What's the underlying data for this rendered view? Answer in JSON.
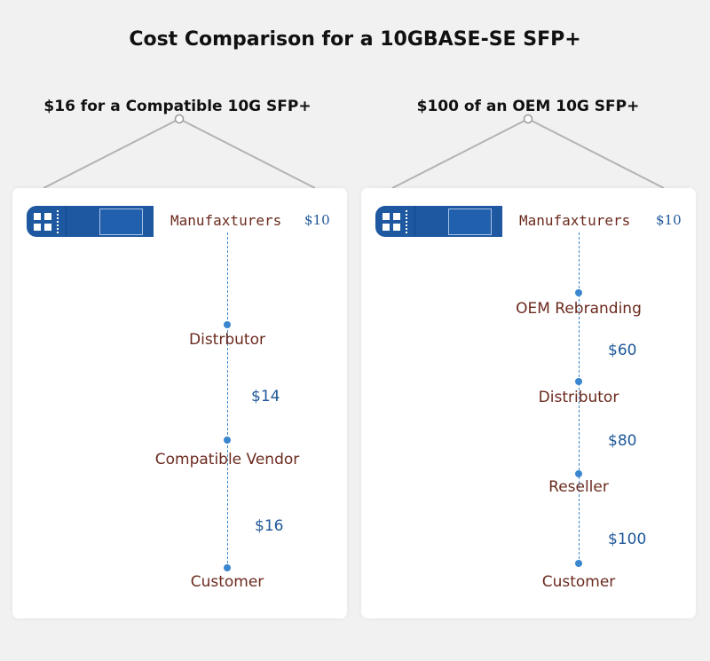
{
  "title": "Cost Comparison for a 10GBASE-SE SFP+",
  "colors": {
    "node_text": "#6b2a1e",
    "price_text": "#1e5798",
    "module_blue": "#1e58a0",
    "dot_blue": "#3a86cf",
    "hanger_gray": "#b3b3b3"
  },
  "left_panel": {
    "header": "$16 for a Compatible 10G SFP+",
    "icon": "sfp-module-icon",
    "manufacturer": "Manufaxturers",
    "manufacturer_price": "$10",
    "nodes": [
      "Distrbutor",
      "Compatible Vendor",
      "Customer"
    ],
    "prices": [
      "$14",
      "$16"
    ]
  },
  "right_panel": {
    "header": "$100 of an OEM 10G SFP+",
    "icon": "sfp-module-icon",
    "manufacturer": "Manufaxturers",
    "manufacturer_price": "$10",
    "nodes": [
      "OEM Rebranding",
      "Distributor",
      "Reseller",
      "Customer"
    ],
    "prices": [
      "$60",
      "$80",
      "$100"
    ]
  }
}
